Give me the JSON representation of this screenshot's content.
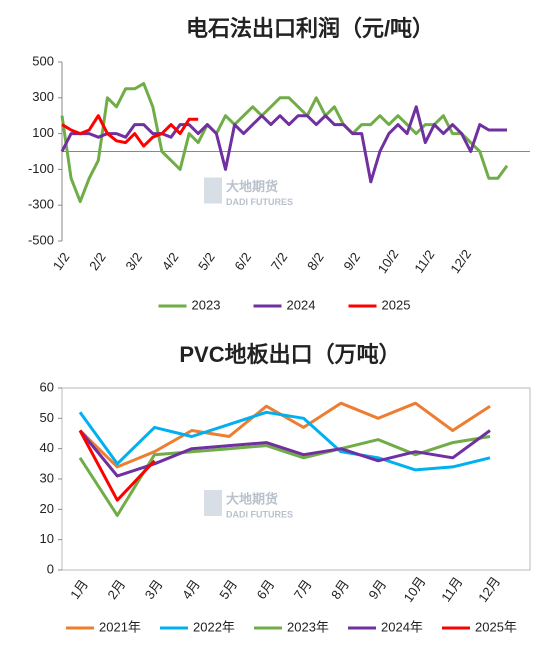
{
  "chart_data": [
    {
      "type": "line",
      "title": "电石法出口利润（元/吨）",
      "watermark": {
        "cn": "大地期货",
        "en": "DADI FUTURES"
      },
      "categories": [
        "1/2",
        null,
        null,
        null,
        "2/2",
        null,
        null,
        null,
        "3/2",
        null,
        null,
        null,
        "4/2",
        null,
        null,
        null,
        "5/2",
        null,
        null,
        null,
        "6/2",
        null,
        null,
        null,
        "7/2",
        null,
        null,
        null,
        "8/2",
        null,
        null,
        null,
        "9/2",
        null,
        null,
        null,
        "10/2",
        null,
        null,
        null,
        "11/2",
        null,
        null,
        null,
        "12/2",
        null,
        null,
        null,
        null,
        null
      ],
      "ylim": [
        -500,
        500
      ],
      "yticks": [
        -500,
        -300,
        -100,
        100,
        300,
        500
      ],
      "zero_line": true,
      "boxed": false,
      "rotate_labels": true,
      "series": [
        {
          "name": "2023",
          "color": "#70ad47",
          "values": [
            200,
            -150,
            -280,
            -150,
            -50,
            300,
            250,
            350,
            350,
            380,
            250,
            0,
            -50,
            -100,
            100,
            50,
            150,
            100,
            200,
            150,
            200,
            250,
            200,
            250,
            300,
            300,
            250,
            200,
            300,
            200,
            250,
            150,
            100,
            150,
            150,
            200,
            150,
            200,
            150,
            100,
            150,
            150,
            200,
            100,
            100,
            50,
            0,
            -150,
            -150,
            -80
          ]
        },
        {
          "name": "2024",
          "color": "#7030a0",
          "values": [
            0,
            100,
            100,
            100,
            80,
            100,
            100,
            80,
            150,
            150,
            100,
            100,
            80,
            150,
            150,
            100,
            150,
            100,
            -100,
            150,
            100,
            150,
            200,
            150,
            200,
            150,
            200,
            200,
            150,
            200,
            150,
            150,
            100,
            100,
            -170,
            0,
            100,
            150,
            100,
            250,
            50,
            150,
            100,
            150,
            100,
            0,
            150,
            120,
            120,
            120
          ]
        },
        {
          "name": "2025",
          "color": "#ff0000",
          "values": [
            150,
            120,
            100,
            120,
            200,
            100,
            60,
            50,
            100,
            30,
            80,
            100,
            150,
            100,
            180,
            180,
            null,
            null,
            null,
            null,
            null,
            null,
            null,
            null,
            null,
            null,
            null,
            null,
            null,
            null,
            null,
            null,
            null,
            null,
            null,
            null,
            null,
            null,
            null,
            null,
            null,
            null,
            null,
            null,
            null,
            null,
            null,
            null,
            null,
            null
          ]
        }
      ]
    },
    {
      "type": "line",
      "title": "PVC地板出口（万吨）",
      "watermark": {
        "cn": "大地期货",
        "en": "DADI FUTURES"
      },
      "categories": [
        "1月",
        "2月",
        "3月",
        "4月",
        "5月",
        "6月",
        "7月",
        "8月",
        "9月",
        "10月",
        "11月",
        "12月"
      ],
      "ylim": [
        0,
        60
      ],
      "yticks": [
        0,
        10,
        20,
        30,
        40,
        50,
        60
      ],
      "zero_line": false,
      "boxed": true,
      "rotate_labels": true,
      "series": [
        {
          "name": "2021年",
          "color": "#ed7d31",
          "values": [
            46,
            34,
            39,
            46,
            44,
            54,
            47,
            55,
            50,
            55,
            46,
            54
          ]
        },
        {
          "name": "2022年",
          "color": "#00b0f0",
          "values": [
            52,
            35,
            47,
            44,
            48,
            52,
            50,
            39,
            37,
            33,
            34,
            37
          ]
        },
        {
          "name": "2023年",
          "color": "#70ad47",
          "values": [
            37,
            18,
            38,
            39,
            40,
            41,
            37,
            40,
            43,
            38,
            42,
            44
          ]
        },
        {
          "name": "2024年",
          "color": "#7030a0",
          "values": [
            46,
            31,
            35,
            40,
            41,
            42,
            38,
            40,
            36,
            39,
            37,
            46
          ]
        },
        {
          "name": "2025年",
          "color": "#ff0000",
          "values": [
            46,
            23,
            36,
            null,
            null,
            null,
            null,
            null,
            null,
            null,
            null,
            null
          ]
        }
      ]
    }
  ]
}
